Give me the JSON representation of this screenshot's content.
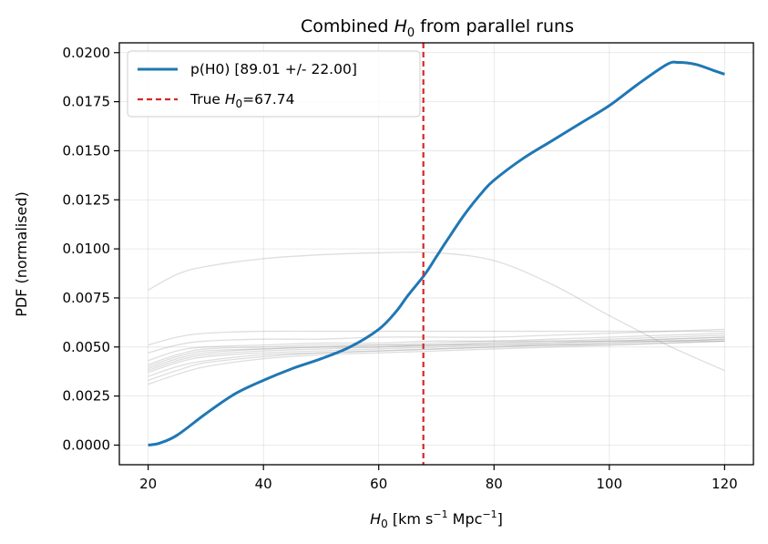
{
  "chart_data": {
    "type": "line",
    "title_parts": {
      "prefix": "Combined ",
      "sym": "H",
      "sub": "0",
      "suffix": " from parallel runs"
    },
    "xlabel_parts": {
      "sym": "H",
      "sub": "0",
      "text": " [km s",
      "sup1": "−1",
      "mid": " Mpc",
      "sup2": "−1",
      "end": "]"
    },
    "ylabel": "PDF (normalised)",
    "xlim": [
      15,
      125
    ],
    "ylim": [
      -0.001,
      0.0205
    ],
    "xticks": [
      20,
      40,
      60,
      80,
      100,
      120
    ],
    "xtick_labels": [
      "20",
      "40",
      "60",
      "80",
      "100",
      "120"
    ],
    "yticks": [
      0.0,
      0.0025,
      0.005,
      0.0075,
      0.01,
      0.0125,
      0.015,
      0.0175,
      0.02
    ],
    "ytick_labels": [
      "0.0000",
      "0.0025",
      "0.0050",
      "0.0075",
      "0.0100",
      "0.0125",
      "0.0150",
      "0.0175",
      "0.0200"
    ],
    "grid": true,
    "legend_position": "top-left",
    "combined": {
      "name": "p(H0) [89.01 +/- 22.00]",
      "color": "#1f77b4",
      "x": [
        20,
        22,
        25,
        30,
        35,
        40,
        45,
        50,
        55,
        60,
        63,
        65,
        68,
        70,
        72,
        75,
        78,
        80,
        85,
        90,
        95,
        100,
        105,
        110,
        112,
        115,
        118,
        120
      ],
      "y": [
        0.0,
        0.0001,
        0.0005,
        0.0016,
        0.0026,
        0.0033,
        0.0039,
        0.0044,
        0.005,
        0.0059,
        0.0068,
        0.0076,
        0.0087,
        0.0096,
        0.0105,
        0.0118,
        0.0129,
        0.0135,
        0.0146,
        0.0155,
        0.0164,
        0.0173,
        0.0184,
        0.0194,
        0.0195,
        0.0194,
        0.0191,
        0.0189
      ]
    },
    "true_line": {
      "label_prefix": "True ",
      "label_sym": "H",
      "label_sub": "0",
      "label_suffix": "=67.74",
      "value": 67.74,
      "color": "#d62728"
    },
    "runs": {
      "color": "#a0a0a0",
      "x": [
        20,
        25,
        30,
        40,
        50,
        60,
        70,
        80,
        90,
        100,
        110,
        120
      ],
      "series": [
        [
          0.0079,
          0.0087,
          0.0091,
          0.0095,
          0.0097,
          0.0098,
          0.0098,
          0.0094,
          0.0082,
          0.0066,
          0.0051,
          0.0038
        ],
        [
          0.0051,
          0.0055,
          0.0057,
          0.0058,
          0.0058,
          0.0058,
          0.0058,
          0.0058,
          0.0058,
          0.0058,
          0.0058,
          0.0058
        ],
        [
          0.0047,
          0.0051,
          0.0053,
          0.0054,
          0.0054,
          0.0055,
          0.0055,
          0.0055,
          0.0056,
          0.0057,
          0.0058,
          0.0059
        ],
        [
          0.0043,
          0.0048,
          0.005,
          0.0051,
          0.0052,
          0.0052,
          0.0053,
          0.0053,
          0.0054,
          0.0055,
          0.0056,
          0.0057
        ],
        [
          0.0041,
          0.0046,
          0.0049,
          0.005,
          0.0051,
          0.0051,
          0.0052,
          0.0053,
          0.0053,
          0.0054,
          0.0055,
          0.0056
        ],
        [
          0.004,
          0.0045,
          0.0048,
          0.0049,
          0.005,
          0.0051,
          0.0051,
          0.0052,
          0.0053,
          0.0053,
          0.0054,
          0.0055
        ],
        [
          0.0039,
          0.0044,
          0.0047,
          0.0049,
          0.005,
          0.005,
          0.0051,
          0.0052,
          0.0052,
          0.0053,
          0.0054,
          0.0055
        ],
        [
          0.0038,
          0.0043,
          0.0046,
          0.0048,
          0.0049,
          0.005,
          0.0051,
          0.0051,
          0.0052,
          0.0053,
          0.0053,
          0.0054
        ],
        [
          0.0037,
          0.0042,
          0.0045,
          0.0047,
          0.0048,
          0.0049,
          0.005,
          0.0051,
          0.0051,
          0.0052,
          0.0053,
          0.0054
        ],
        [
          0.0035,
          0.004,
          0.0043,
          0.0046,
          0.0047,
          0.0048,
          0.0049,
          0.005,
          0.0051,
          0.0052,
          0.0053,
          0.0053
        ],
        [
          0.0033,
          0.0038,
          0.0042,
          0.0045,
          0.0047,
          0.0048,
          0.0049,
          0.005,
          0.0051,
          0.0051,
          0.0052,
          0.0053
        ],
        [
          0.0031,
          0.0036,
          0.004,
          0.0044,
          0.0046,
          0.0047,
          0.0048,
          0.0049,
          0.005,
          0.0051,
          0.0052,
          0.0053
        ]
      ]
    }
  }
}
